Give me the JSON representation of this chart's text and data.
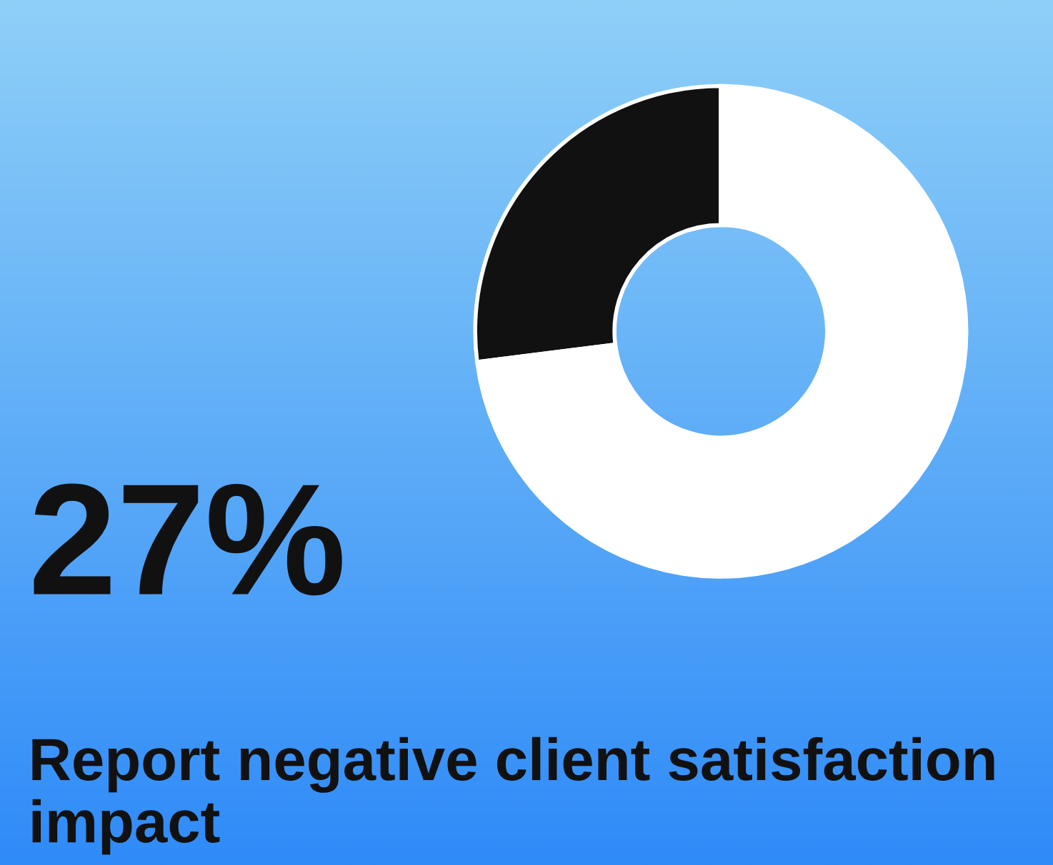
{
  "chart_data": {
    "type": "donut",
    "title": "Report negative client satisfaction impact",
    "categories": [
      null,
      null
    ],
    "values": [
      27,
      73
    ],
    "colors": [
      "#111111",
      "#ffffff"
    ],
    "value_labels": [
      "27%",
      null
    ],
    "legend": false
  }
}
